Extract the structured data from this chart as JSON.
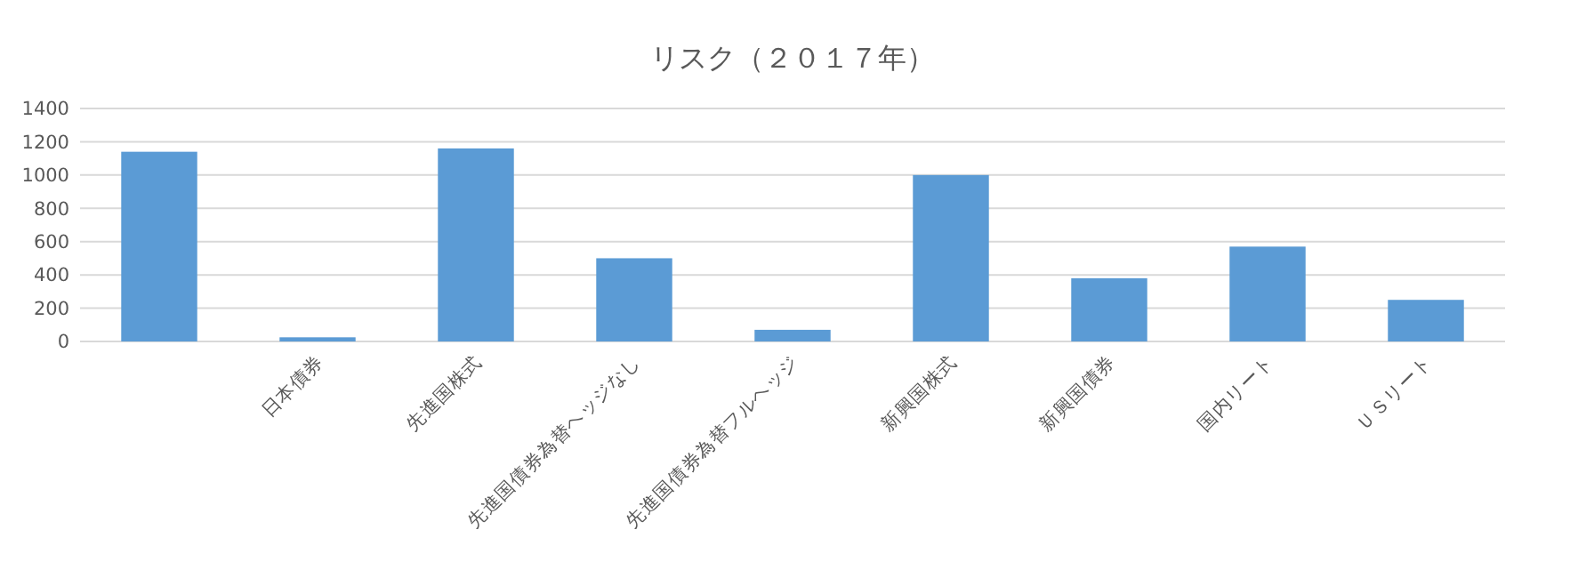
{
  "chart_data": {
    "type": "bar",
    "title": "リスク（２０１７年）",
    "categories": [
      null,
      "日本債券",
      "先進国株式",
      "先進国債券為替ヘッジなし",
      "先進国債券為替フルヘッジ",
      "新興国株式",
      "新興国債券",
      "国内リート",
      "ＵＳリート"
    ],
    "values": [
      1140,
      25,
      1160,
      500,
      70,
      1000,
      380,
      570,
      250
    ],
    "color": "#5b9bd5",
    "ylim": [
      0,
      1400
    ],
    "yticks": [
      0,
      200,
      400,
      600,
      800,
      1000,
      1200,
      1400
    ],
    "grid": "y"
  }
}
